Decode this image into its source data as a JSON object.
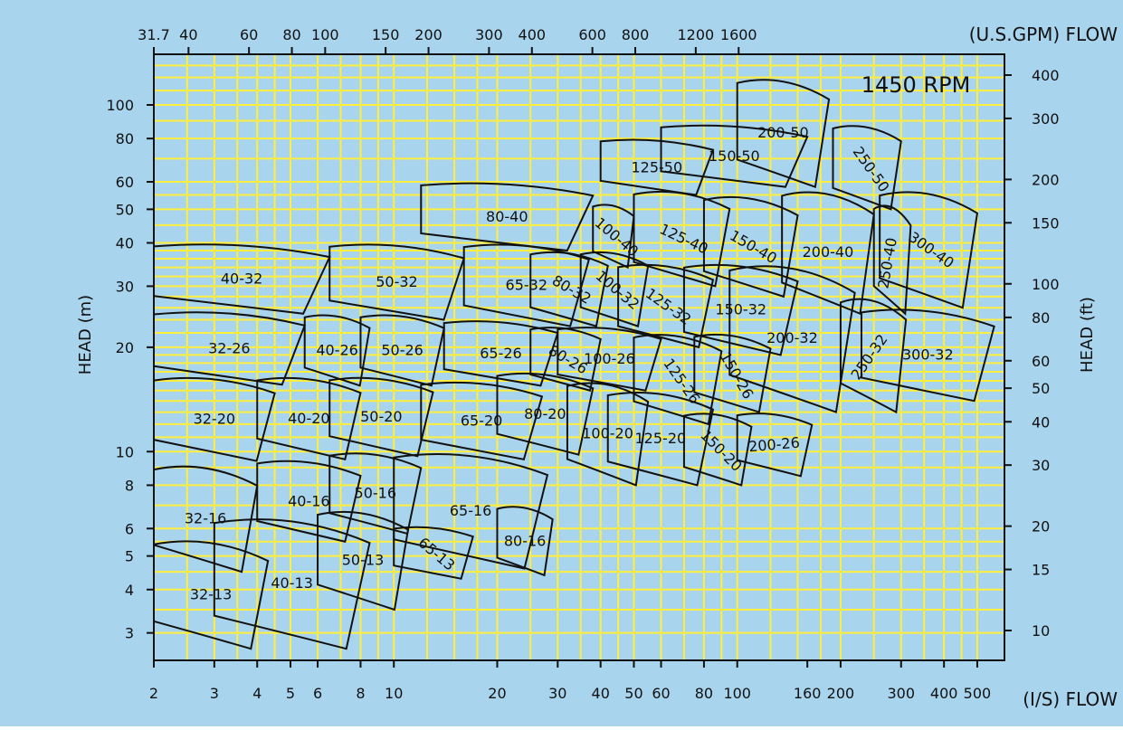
{
  "chart_data": {
    "type": "pump_coverage_chart",
    "title": "1450 RPM",
    "xlabel_bottom": "(I/S) FLOW",
    "xlabel_top": "(U.S.GPM) FLOW",
    "ylabel_left": "HEAD (m)",
    "ylabel_right": "HEAD (ft)",
    "x_scale": "log",
    "y_scale": "log",
    "xlim": [
      2,
      600
    ],
    "ylim": [
      2.5,
      140
    ],
    "grid": true,
    "colors": {
      "background": "#a9d4ee",
      "grid": "#ffee3c",
      "lines": "#111111"
    },
    "bottom_ticks": [
      "2",
      "3",
      "4",
      "5",
      "6",
      "8",
      "10",
      "20",
      "30",
      "40",
      "50",
      "60",
      "80",
      "100",
      "160",
      "200",
      "300",
      "400",
      "500"
    ],
    "top_ticks": [
      "31.7",
      "40",
      "60",
      "80",
      "100",
      "150",
      "200",
      "300",
      "400",
      "600",
      "800",
      "1200",
      "1600"
    ],
    "left_ticks": [
      "3",
      "4",
      "5",
      "6",
      "8",
      "10",
      "20",
      "30",
      "40",
      "50",
      "60",
      "80",
      "100"
    ],
    "right_ticks": [
      "10",
      "15",
      "20",
      "30",
      "40",
      "50",
      "60",
      "80",
      "100",
      "150",
      "200",
      "300",
      "400"
    ],
    "pump_models": [
      {
        "name": "32-13",
        "flow": [
          2.0,
          4.3
        ],
        "head": [
          2.7,
          5.6
        ]
      },
      {
        "name": "32-16",
        "flow": [
          2.0,
          4.0
        ],
        "head": [
          4.5,
          9.2
        ]
      },
      {
        "name": "32-20",
        "flow": [
          2.0,
          4.5
        ],
        "head": [
          9.4,
          16.5
        ]
      },
      {
        "name": "32-26",
        "flow": [
          2.0,
          5.5
        ],
        "head": [
          15.6,
          25.5
        ]
      },
      {
        "name": "40-32",
        "flow": [
          2.0,
          6.5
        ],
        "head": [
          25,
          40
        ]
      },
      {
        "name": "40-13",
        "flow": [
          3.0,
          8.5
        ],
        "head": [
          2.7,
          6.5
        ]
      },
      {
        "name": "40-16",
        "flow": [
          4.0,
          8.0
        ],
        "head": [
          5.5,
          9.5
        ]
      },
      {
        "name": "40-20",
        "flow": [
          4.0,
          8.0
        ],
        "head": [
          9.5,
          16.5
        ]
      },
      {
        "name": "40-26",
        "flow": [
          5.5,
          8.5
        ],
        "head": [
          15.5,
          25
        ]
      },
      {
        "name": "50-13",
        "flow": [
          6.0,
          11.0
        ],
        "head": [
          3.5,
          6.8
        ]
      },
      {
        "name": "50-16",
        "flow": [
          6.5,
          12.0
        ],
        "head": [
          5.8,
          10
        ]
      },
      {
        "name": "50-20",
        "flow": [
          6.5,
          13.0
        ],
        "head": [
          9.7,
          16.5
        ]
      },
      {
        "name": "50-26",
        "flow": [
          8.0,
          14.0
        ],
        "head": [
          15.5,
          25
        ]
      },
      {
        "name": "50-32",
        "flow": [
          6.5,
          16.0
        ],
        "head": [
          24,
          40
        ]
      },
      {
        "name": "65-13",
        "flow": [
          10.0,
          17.0
        ],
        "head": [
          4.3,
          6.1
        ]
      },
      {
        "name": "65-16",
        "flow": [
          10.0,
          28.0
        ],
        "head": [
          4.6,
          10
        ]
      },
      {
        "name": "65-20",
        "flow": [
          12.0,
          27.0
        ],
        "head": [
          9.5,
          16
        ]
      },
      {
        "name": "65-26",
        "flow": [
          14.0,
          30.0
        ],
        "head": [
          15.5,
          24
        ]
      },
      {
        "name": "65-32",
        "flow": [
          16.0,
          37.0
        ],
        "head": [
          23,
          40
        ]
      },
      {
        "name": "80-16",
        "flow": [
          20.0,
          29.0
        ],
        "head": [
          4.4,
          7
        ]
      },
      {
        "name": "80-20",
        "flow": [
          20.0,
          38.0
        ],
        "head": [
          9.8,
          17
        ]
      },
      {
        "name": "80-26",
        "flow": [
          25.0,
          40.0
        ],
        "head": [
          15,
          23
        ]
      },
      {
        "name": "80-32",
        "flow": [
          25.0,
          42.0
        ],
        "head": [
          23,
          38
        ]
      },
      {
        "name": "80-40",
        "flow": [
          12.0,
          38.0
        ],
        "head": [
          38,
          60
        ]
      },
      {
        "name": "100-20",
        "flow": [
          32.0,
          55.0
        ],
        "head": [
          8,
          16
        ]
      },
      {
        "name": "100-26",
        "flow": [
          30.0,
          60.0
        ],
        "head": [
          15,
          23
        ]
      },
      {
        "name": "100-32",
        "flow": [
          35.0,
          55.0
        ],
        "head": [
          23,
          38
        ]
      },
      {
        "name": "100-40",
        "flow": [
          38.0,
          50.0
        ],
        "head": [
          34,
          52
        ]
      },
      {
        "name": "125-20",
        "flow": [
          42.0,
          85.0
        ],
        "head": [
          8,
          15
        ]
      },
      {
        "name": "125-26",
        "flow": [
          50.0,
          90.0
        ],
        "head": [
          12,
          22
        ]
      },
      {
        "name": "125-32",
        "flow": [
          45.0,
          85.0
        ],
        "head": [
          20,
          35
        ]
      },
      {
        "name": "125-40",
        "flow": [
          50.0,
          95.0
        ],
        "head": [
          30,
          57
        ]
      },
      {
        "name": "125-50",
        "flow": [
          40.0,
          85.0
        ],
        "head": [
          55,
          80
        ]
      },
      {
        "name": "150-20",
        "flow": [
          70.0,
          110.0
        ],
        "head": [
          8,
          13
        ]
      },
      {
        "name": "150-26",
        "flow": [
          75.0,
          125.0
        ],
        "head": [
          13,
          22
        ]
      },
      {
        "name": "150-32",
        "flow": [
          70.0,
          150.0
        ],
        "head": [
          19,
          35
        ]
      },
      {
        "name": "150-40",
        "flow": [
          80.0,
          150.0
        ],
        "head": [
          28,
          55
        ]
      },
      {
        "name": "150-50",
        "flow": [
          60.0,
          160.0
        ],
        "head": [
          58,
          88
        ]
      },
      {
        "name": "200-20",
        "flow": [],
        "head": []
      },
      {
        "name": "200-26",
        "flow": [
          100.0,
          165.0
        ],
        "head": [
          8.5,
          13
        ]
      },
      {
        "name": "200-32",
        "flow": [
          95.0,
          220.0
        ],
        "head": [
          13,
          35
        ]
      },
      {
        "name": "200-40",
        "flow": [
          135.0,
          250.0
        ],
        "head": [
          25,
          57
        ]
      },
      {
        "name": "200-50",
        "flow": [
          100.0,
          185.0
        ],
        "head": [
          58,
          120
        ]
      },
      {
        "name": "250-32",
        "flow": [
          200.0,
          310.0
        ],
        "head": [
          13,
          28
        ]
      },
      {
        "name": "250-40",
        "flow": [
          250.0,
          320.0
        ],
        "head": [
          25,
          52
        ]
      },
      {
        "name": "250-50",
        "flow": [
          190.0,
          300.0
        ],
        "head": [
          50,
          88
        ]
      },
      {
        "name": "300-32",
        "flow": [
          230.0,
          560.0
        ],
        "head": [
          14,
          26
        ]
      },
      {
        "name": "300-40",
        "flow": [
          260.0,
          500.0
        ],
        "head": [
          26,
          57
        ]
      }
    ]
  }
}
